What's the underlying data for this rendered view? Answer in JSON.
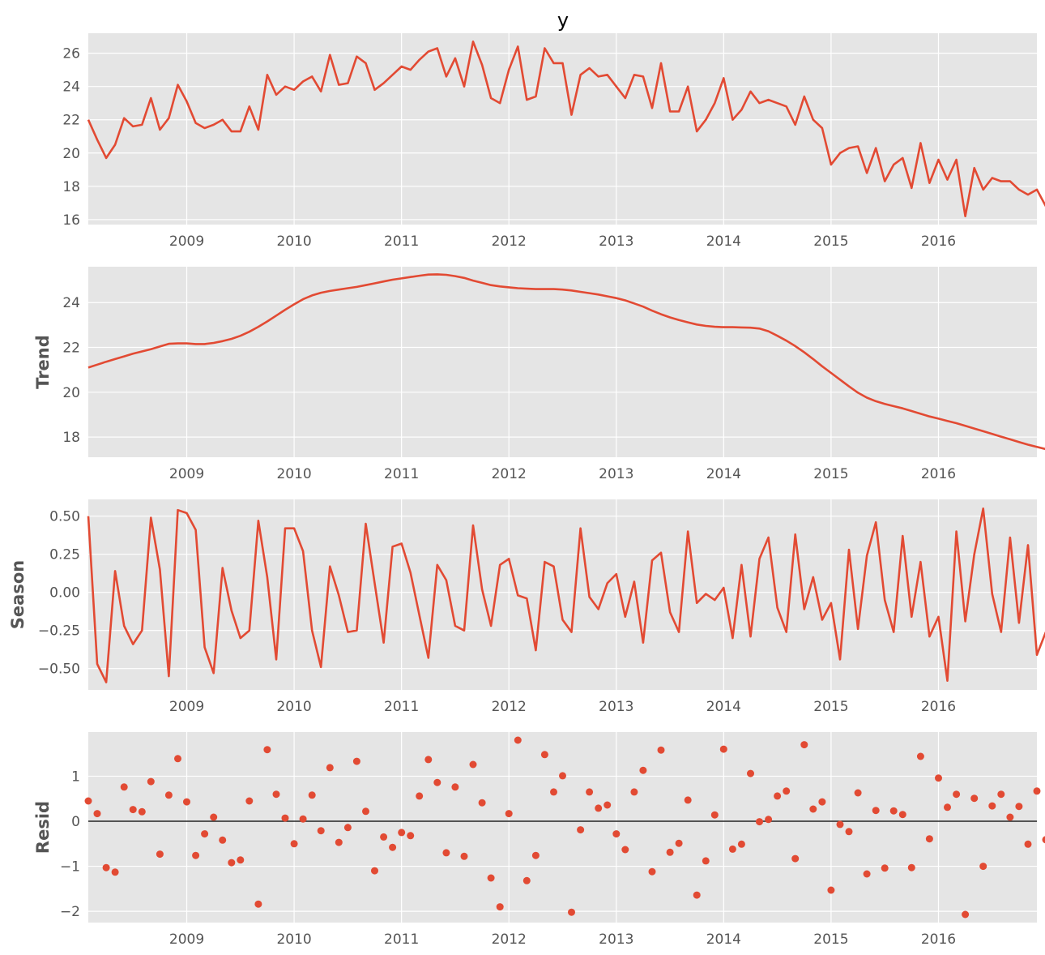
{
  "figure": {
    "title": "y",
    "line_color": "#E24A33",
    "panel_bg": "#E5E5E5",
    "grid_color": "#FFFFFF",
    "tick_label_color": "#555555"
  },
  "chart_data": [
    {
      "type": "line",
      "name": "observed",
      "title": "y",
      "xlabel": "",
      "ylabel": "",
      "x_start": "2008-02",
      "x_freq": "monthly",
      "xlim": [
        "2008-02",
        "2016-12"
      ],
      "ylim": [
        15.7,
        27.2
      ],
      "yticks": [
        16,
        18,
        20,
        22,
        24,
        26
      ],
      "ytick_labels": [
        "16",
        "18",
        "20",
        "22",
        "24",
        "26"
      ],
      "xticks": [
        "2009-01",
        "2010-01",
        "2011-01",
        "2012-01",
        "2013-01",
        "2014-01",
        "2015-01",
        "2016-01"
      ],
      "xtick_labels": [
        "2009",
        "2010",
        "2011",
        "2012",
        "2013",
        "2014",
        "2015",
        "2016"
      ],
      "grid": true,
      "values": [
        22.0,
        20.8,
        19.7,
        20.5,
        22.1,
        21.6,
        21.7,
        23.3,
        21.4,
        22.1,
        24.1,
        23.1,
        21.8,
        21.5,
        21.7,
        22.0,
        21.3,
        21.3,
        22.8,
        21.4,
        24.7,
        23.5,
        24.0,
        23.8,
        24.3,
        24.6,
        23.7,
        25.9,
        24.1,
        24.2,
        25.8,
        25.4,
        23.8,
        24.2,
        24.7,
        25.2,
        25.0,
        25.6,
        26.1,
        26.3,
        24.6,
        25.7,
        24.0,
        26.7,
        25.3,
        23.3,
        23.0,
        25.0,
        26.4,
        23.2,
        23.4,
        26.3,
        25.4,
        25.4,
        22.3,
        24.7,
        25.1,
        24.6,
        24.7,
        24.0,
        23.3,
        24.7,
        24.6,
        22.7,
        25.4,
        22.5,
        22.5,
        24.0,
        21.3,
        22.0,
        23.0,
        24.5,
        22.0,
        22.6,
        23.7,
        23.0,
        23.2,
        23.0,
        22.8,
        21.7,
        23.4,
        22.0,
        21.5,
        19.3,
        20.0,
        20.3,
        20.4,
        18.8,
        20.3,
        18.3,
        19.3,
        19.7,
        17.9,
        20.6,
        18.2,
        19.6,
        18.4,
        19.6,
        16.2,
        19.1,
        17.8,
        18.5,
        18.3,
        18.3,
        17.8,
        17.5,
        17.8,
        16.8
      ]
    },
    {
      "type": "line",
      "name": "trend",
      "title": "",
      "xlabel": "",
      "ylabel": "Trend",
      "x_start": "2008-02",
      "x_freq": "monthly",
      "xlim": [
        "2008-02",
        "2016-12"
      ],
      "ylim": [
        17.1,
        25.6
      ],
      "yticks": [
        18,
        20,
        22,
        24
      ],
      "ytick_labels": [
        "18",
        "20",
        "22",
        "24"
      ],
      "xticks": [
        "2009-01",
        "2010-01",
        "2011-01",
        "2012-01",
        "2013-01",
        "2014-01",
        "2015-01",
        "2016-01"
      ],
      "xtick_labels": [
        "2009",
        "2010",
        "2011",
        "2012",
        "2013",
        "2014",
        "2015",
        "2016"
      ],
      "grid": true,
      "values": [
        21.1,
        21.23,
        21.36,
        21.48,
        21.6,
        21.72,
        21.82,
        21.92,
        22.04,
        22.16,
        22.18,
        22.18,
        22.15,
        22.15,
        22.2,
        22.28,
        22.38,
        22.52,
        22.7,
        22.92,
        23.16,
        23.42,
        23.68,
        23.92,
        24.15,
        24.32,
        24.44,
        24.52,
        24.58,
        24.64,
        24.7,
        24.78,
        24.86,
        24.94,
        25.02,
        25.08,
        25.14,
        25.2,
        25.25,
        25.26,
        25.24,
        25.18,
        25.1,
        24.98,
        24.88,
        24.78,
        24.72,
        24.68,
        24.64,
        24.62,
        24.6,
        24.6,
        24.6,
        24.58,
        24.54,
        24.48,
        24.42,
        24.36,
        24.28,
        24.2,
        24.1,
        23.96,
        23.82,
        23.64,
        23.48,
        23.34,
        23.22,
        23.12,
        23.02,
        22.96,
        22.92,
        22.9,
        22.9,
        22.89,
        22.88,
        22.84,
        22.72,
        22.52,
        22.3,
        22.06,
        21.78,
        21.48,
        21.16,
        20.86,
        20.56,
        20.26,
        19.98,
        19.76,
        19.6,
        19.48,
        19.38,
        19.28,
        19.16,
        19.04,
        18.92,
        18.82,
        18.72,
        18.62,
        18.5,
        18.38,
        18.26,
        18.14,
        18.02,
        17.9,
        17.78,
        17.66,
        17.56,
        17.46
      ]
    },
    {
      "type": "line",
      "name": "seasonal",
      "title": "",
      "xlabel": "",
      "ylabel": "Season",
      "x_start": "2008-02",
      "x_freq": "monthly",
      "xlim": [
        "2008-02",
        "2016-12"
      ],
      "ylim": [
        -0.64,
        0.61
      ],
      "yticks": [
        -0.5,
        -0.25,
        0.0,
        0.25,
        0.5
      ],
      "ytick_labels": [
        "−0.50",
        "−0.25",
        "0.00",
        "0.25",
        "0.50"
      ],
      "xticks": [
        "2009-01",
        "2010-01",
        "2011-01",
        "2012-01",
        "2013-01",
        "2014-01",
        "2015-01",
        "2016-01"
      ],
      "xtick_labels": [
        "2009",
        "2010",
        "2011",
        "2012",
        "2013",
        "2014",
        "2015",
        "2016"
      ],
      "grid": true,
      "values": [
        0.5,
        -0.47,
        -0.59,
        0.14,
        -0.22,
        -0.34,
        -0.25,
        0.49,
        0.15,
        -0.55,
        0.54,
        0.52,
        0.41,
        -0.36,
        -0.53,
        0.16,
        -0.12,
        -0.3,
        -0.25,
        0.47,
        0.1,
        -0.44,
        0.42,
        0.42,
        0.27,
        -0.25,
        -0.49,
        0.17,
        -0.02,
        -0.26,
        -0.25,
        0.45,
        0.06,
        -0.33,
        0.3,
        0.32,
        0.13,
        -0.15,
        -0.43,
        0.18,
        0.08,
        -0.22,
        -0.25,
        0.44,
        0.02,
        -0.22,
        0.18,
        0.22,
        -0.02,
        -0.04,
        -0.38,
        0.2,
        0.17,
        -0.18,
        -0.26,
        0.42,
        -0.03,
        -0.11,
        0.06,
        0.12,
        -0.16,
        0.07,
        -0.33,
        0.21,
        0.26,
        -0.13,
        -0.26,
        0.4,
        -0.07,
        -0.01,
        -0.05,
        0.03,
        -0.3,
        0.18,
        -0.29,
        0.22,
        0.36,
        -0.1,
        -0.26,
        0.38,
        -0.11,
        0.1,
        -0.18,
        -0.07,
        -0.44,
        0.28,
        -0.24,
        0.24,
        0.46,
        -0.05,
        -0.26,
        0.37,
        -0.16,
        0.2,
        -0.29,
        -0.16,
        -0.58,
        0.4,
        -0.19,
        0.25,
        0.55,
        -0.01,
        -0.26,
        0.36,
        -0.2,
        0.31,
        -0.41,
        -0.26
      ]
    },
    {
      "type": "scatter",
      "name": "resid",
      "title": "",
      "xlabel": "",
      "ylabel": "Resid",
      "x_start": "2008-02",
      "x_freq": "monthly",
      "xlim": [
        "2008-02",
        "2016-12"
      ],
      "ylim": [
        -2.25,
        1.98
      ],
      "yticks": [
        -2,
        -1,
        0,
        1
      ],
      "ytick_labels": [
        "−2",
        "−1",
        "0",
        "1"
      ],
      "xticks": [
        "2009-01",
        "2010-01",
        "2011-01",
        "2012-01",
        "2013-01",
        "2014-01",
        "2015-01",
        "2016-01"
      ],
      "xtick_labels": [
        "2009",
        "2010",
        "2011",
        "2012",
        "2013",
        "2014",
        "2015",
        "2016"
      ],
      "grid": true,
      "zero_line": true,
      "values": [
        0.45,
        0.17,
        -1.03,
        -1.13,
        0.76,
        0.26,
        0.21,
        0.88,
        -0.73,
        0.58,
        1.39,
        0.43,
        -0.76,
        -0.28,
        0.09,
        -0.42,
        -0.92,
        -0.86,
        0.45,
        -1.84,
        1.59,
        0.6,
        0.07,
        -0.5,
        0.05,
        0.58,
        -0.21,
        1.19,
        -0.47,
        -0.14,
        1.33,
        0.22,
        -1.1,
        -0.35,
        -0.58,
        -0.25,
        -0.32,
        0.56,
        1.37,
        0.86,
        -0.7,
        0.76,
        -0.78,
        1.26,
        0.41,
        -1.26,
        -1.9,
        0.17,
        1.8,
        -1.32,
        -0.76,
        1.48,
        0.65,
        1.01,
        -2.02,
        -0.19,
        0.65,
        0.29,
        0.36,
        -0.28,
        -0.63,
        0.65,
        1.13,
        -1.12,
        1.58,
        -0.69,
        -0.49,
        0.47,
        -1.64,
        -0.88,
        0.14,
        1.6,
        -0.62,
        -0.51,
        1.06,
        -0.01,
        0.04,
        0.56,
        0.67,
        -0.83,
        1.7,
        0.27,
        0.43,
        -1.53,
        -0.07,
        -0.23,
        0.63,
        -1.17,
        0.24,
        -1.04,
        0.23,
        0.15,
        -1.03,
        1.44,
        -0.39,
        0.96,
        0.31,
        0.6,
        -2.07,
        0.51,
        -1.0,
        0.34,
        0.6,
        0.09,
        0.33,
        -0.51,
        0.67,
        -0.41
      ]
    }
  ]
}
